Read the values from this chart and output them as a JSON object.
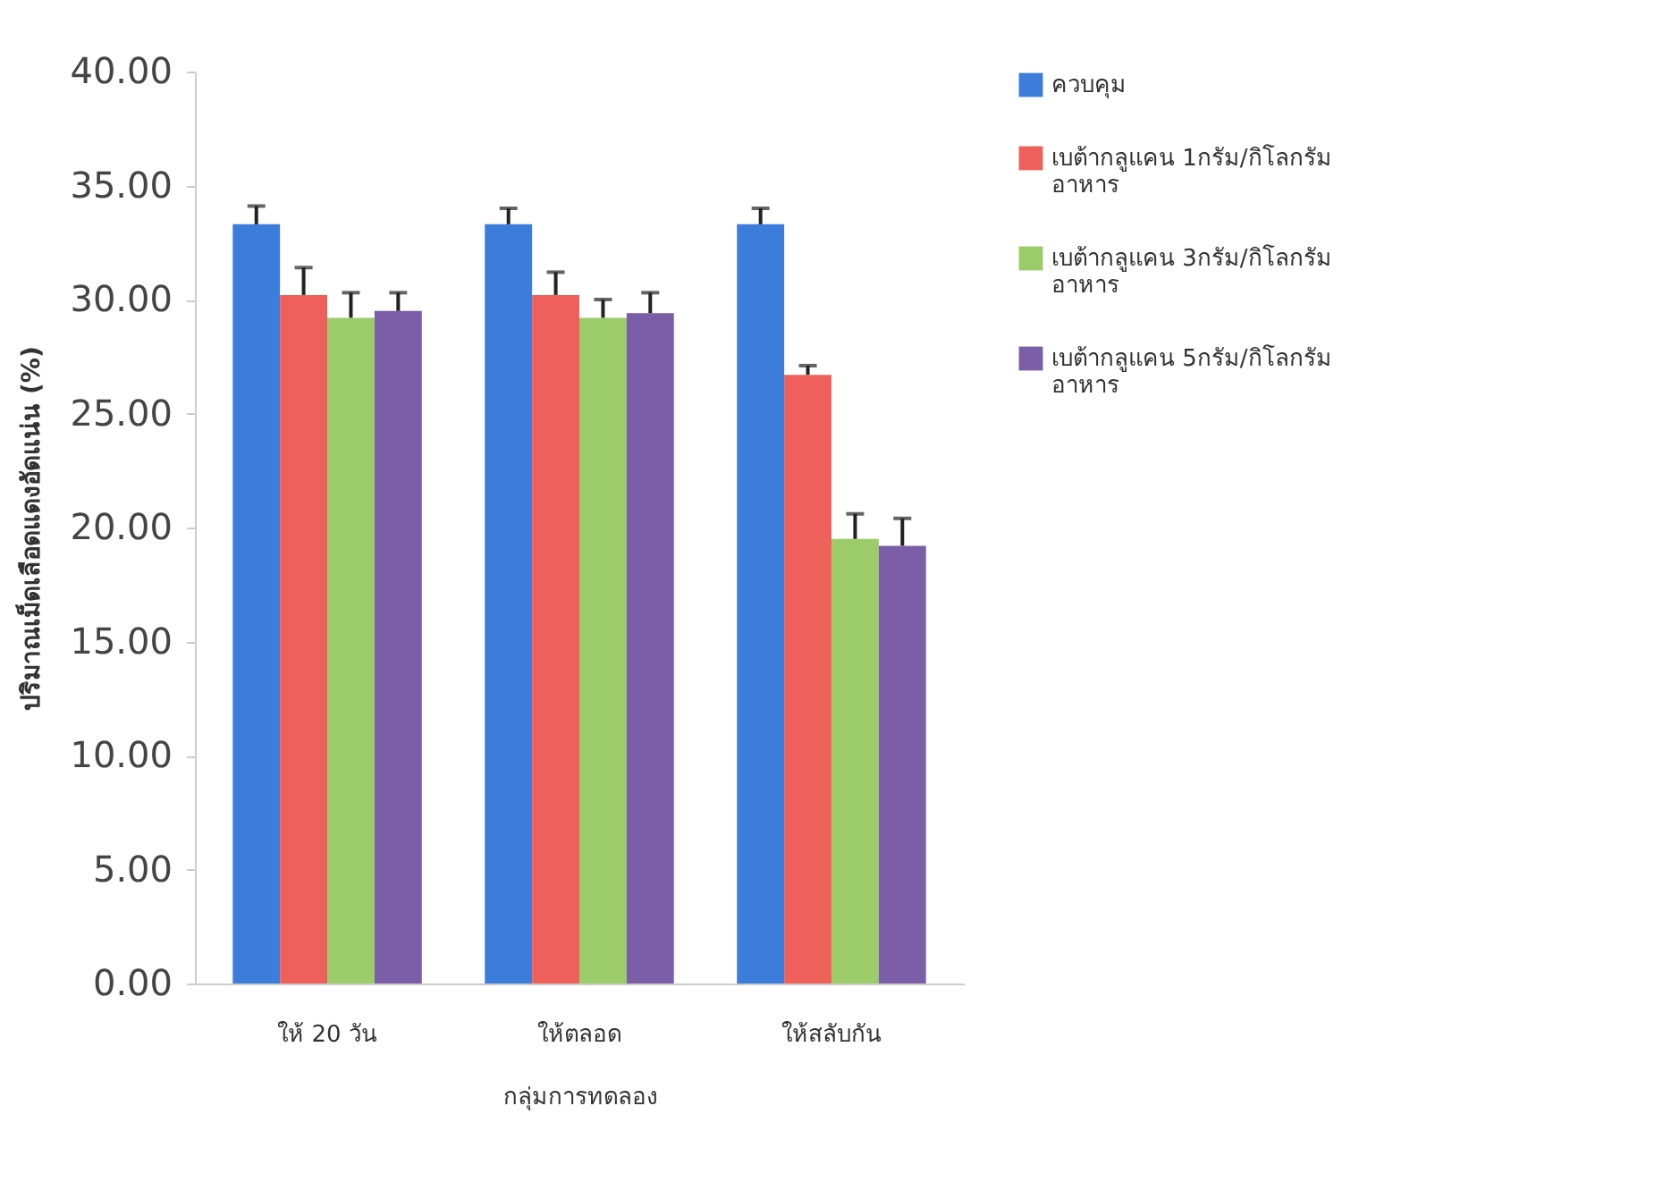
{
  "chart_data": {
    "type": "bar",
    "xlabel": "กลุ่มการทดลอง",
    "ylabel": "ปริมาณเม็ดเลือดแดงอัดแน่น (%)",
    "categories": [
      "ให้ 20 วัน",
      "ให้ตลอด",
      "ให้สลับกัน"
    ],
    "series": [
      {
        "name": "ควบคุม",
        "color": "#3c7ddb",
        "values": [
          33.3,
          33.3,
          33.3
        ],
        "errors": [
          [
            33.3,
            34.1
          ],
          [
            33.3,
            34.0
          ],
          [
            33.3,
            34.0
          ]
        ]
      },
      {
        "name": "เบต้ากลูแคน 1กรัม/กิโลกรัม อาหาร",
        "color": "#f0605a",
        "values": [
          30.2,
          30.2,
          26.7
        ],
        "errors": [
          [
            30.2,
            31.4
          ],
          [
            30.2,
            31.2
          ],
          [
            26.7,
            27.1
          ]
        ]
      },
      {
        "name": "เบต้ากลูแคน 3กรัม/กิโลกรัม อาหาร",
        "color": "#9ccc6a",
        "values": [
          29.2,
          29.2,
          19.5
        ],
        "errors": [
          [
            29.2,
            30.3
          ],
          [
            29.2,
            30.0
          ],
          [
            19.5,
            20.6
          ]
        ]
      },
      {
        "name": "เบต้ากลูแคน 5กรัม/กิโลกรัม อาหาร",
        "color": "#7b5ea7",
        "values": [
          29.5,
          29.4,
          19.2
        ],
        "errors": [
          [
            29.5,
            30.3
          ],
          [
            29.4,
            30.3
          ],
          [
            19.2,
            20.4
          ]
        ]
      }
    ],
    "ylim": [
      0,
      40
    ],
    "yticks": [
      {
        "value": 0,
        "label": "0.00"
      },
      {
        "value": 5,
        "label": "5.00"
      },
      {
        "value": 10,
        "label": "10.00"
      },
      {
        "value": 15,
        "label": "15.00"
      },
      {
        "value": 20,
        "label": "20.00"
      },
      {
        "value": 25,
        "label": "25.00"
      },
      {
        "value": 30,
        "label": "30.00"
      },
      {
        "value": 35,
        "label": "35.00"
      },
      {
        "value": 40,
        "label": "40.00"
      }
    ],
    "grid": false,
    "legend": "right"
  }
}
